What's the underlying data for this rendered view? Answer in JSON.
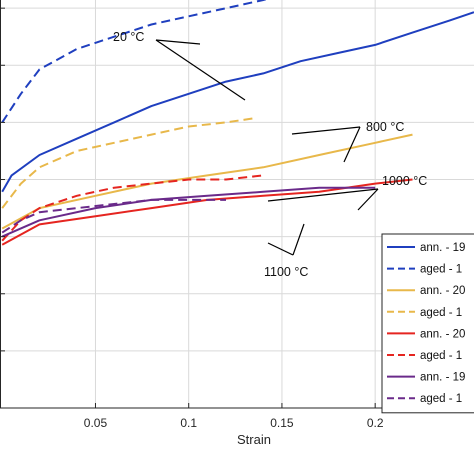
{
  "chart_data": {
    "type": "line",
    "title": "",
    "xlabel": "Strain",
    "ylabel": "",
    "xlim": [
      -0.0012,
      0.253
    ],
    "ylim": [
      0,
      1
    ],
    "y_axis_label_shown": false,
    "grid": true,
    "xticks": [
      0.05,
      0.1,
      0.15,
      0.2
    ],
    "xtick_labels": [
      "0.05",
      "0.1",
      "0.15",
      "0.2"
    ],
    "yticks": [
      0.14,
      0.28,
      0.42,
      0.56,
      0.7,
      0.84,
      0.98
    ],
    "legend": {
      "placement": "bottom-right"
    },
    "series": [
      {
        "name": "ann. - 19",
        "color": "#1f3fbf",
        "dash": "solid",
        "x": [
          0,
          0.005,
          0.02,
          0.04,
          0.06,
          0.08,
          0.1,
          0.12,
          0.14,
          0.16,
          0.18,
          0.2,
          0.22,
          0.24,
          0.253
        ],
        "y": [
          0.53,
          0.57,
          0.62,
          0.66,
          0.7,
          0.74,
          0.77,
          0.8,
          0.82,
          0.85,
          0.87,
          0.89,
          0.92,
          0.95,
          0.97
        ]
      },
      {
        "name": "aged - 1",
        "color": "#1f3fbf",
        "dash": "dashed",
        "x": [
          0,
          0.01,
          0.02,
          0.04,
          0.06,
          0.08,
          0.1,
          0.12,
          0.14,
          0.148
        ],
        "y": [
          0.7,
          0.77,
          0.83,
          0.88,
          0.91,
          0.94,
          0.96,
          0.98,
          1.0,
          1.01
        ]
      },
      {
        "name": "ann. - 20",
        "color": "#e8b84a",
        "dash": "solid",
        "x": [
          0,
          0.02,
          0.05,
          0.08,
          0.11,
          0.14,
          0.17,
          0.2,
          0.22
        ],
        "y": [
          0.44,
          0.49,
          0.52,
          0.55,
          0.57,
          0.59,
          0.62,
          0.65,
          0.67
        ]
      },
      {
        "name": "aged - 1",
        "color": "#e8b84a",
        "dash": "dashed",
        "x": [
          0,
          0.01,
          0.02,
          0.04,
          0.06,
          0.08,
          0.1,
          0.12,
          0.135
        ],
        "y": [
          0.49,
          0.55,
          0.59,
          0.63,
          0.65,
          0.67,
          0.69,
          0.7,
          0.71
        ]
      },
      {
        "name": "ann. - 20",
        "color": "#e52520",
        "dash": "solid",
        "x": [
          0,
          0.02,
          0.05,
          0.08,
          0.11,
          0.14,
          0.17,
          0.2,
          0.22
        ],
        "y": [
          0.4,
          0.45,
          0.47,
          0.49,
          0.51,
          0.52,
          0.53,
          0.55,
          0.56
        ]
      },
      {
        "name": "aged - 1",
        "color": "#e52520",
        "dash": "dashed",
        "x": [
          0,
          0.01,
          0.02,
          0.04,
          0.06,
          0.08,
          0.1,
          0.12,
          0.14
        ],
        "y": [
          0.41,
          0.46,
          0.49,
          0.52,
          0.54,
          0.55,
          0.56,
          0.56,
          0.57
        ]
      },
      {
        "name": "ann. - 19",
        "color": "#6a2a8a",
        "dash": "solid",
        "x": [
          0,
          0.02,
          0.05,
          0.08,
          0.11,
          0.14,
          0.17,
          0.2
        ],
        "y": [
          0.42,
          0.46,
          0.49,
          0.51,
          0.52,
          0.53,
          0.54,
          0.54
        ]
      },
      {
        "name": "aged - 1",
        "color": "#6a2a8a",
        "dash": "dashed",
        "x": [
          0,
          0.01,
          0.02,
          0.04,
          0.06,
          0.08,
          0.1,
          0.12
        ],
        "y": [
          0.43,
          0.46,
          0.48,
          0.49,
          0.5,
          0.51,
          0.51,
          0.51
        ]
      }
    ],
    "annotations": [
      {
        "text": "20 °C"
      },
      {
        "text": "800 °C"
      },
      {
        "text": "1000 °C"
      },
      {
        "text": "1100 °C"
      }
    ]
  }
}
